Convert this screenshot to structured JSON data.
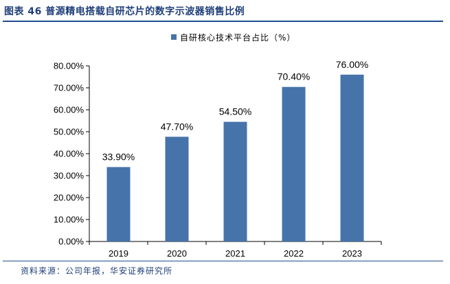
{
  "header": {
    "title": "图表 46 普源精电搭载自研芯片的数字示波器销售比例"
  },
  "footer": {
    "source": "资料来源：公司年报，华安证券研究所"
  },
  "chart_data": {
    "type": "bar",
    "categories": [
      "2019",
      "2020",
      "2021",
      "2022",
      "2023"
    ],
    "series": [
      {
        "name": "自研核心技术平台占比（%）",
        "values": [
          33.9,
          47.7,
          54.5,
          70.4,
          76.0
        ],
        "labels": [
          "33.90%",
          "47.70%",
          "54.50%",
          "70.40%",
          "76.00%"
        ],
        "color": "#4673aa"
      }
    ],
    "ylim": [
      0,
      80
    ],
    "yticks": [
      0,
      10,
      20,
      30,
      40,
      50,
      60,
      70,
      80
    ],
    "ytick_labels": [
      "0.00%",
      "10.00%",
      "20.00%",
      "30.00%",
      "40.00%",
      "50.00%",
      "60.00%",
      "70.00%",
      "80.00%"
    ],
    "grid": false,
    "legend": "top-center"
  }
}
